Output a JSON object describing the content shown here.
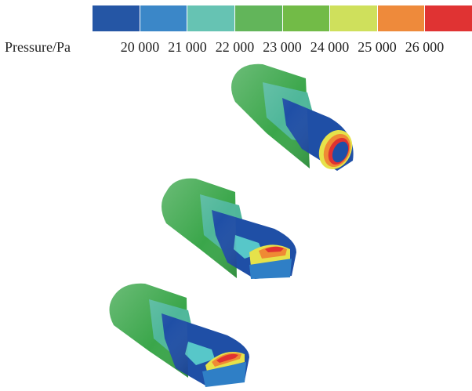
{
  "legend": {
    "title": "Pressure/Pa",
    "ticks": [
      "20 000",
      "21 000",
      "22 000",
      "23 000",
      "24 000",
      "25 000",
      "26 000"
    ],
    "colors": [
      "#2556a5",
      "#3b87c8",
      "#66c3b3",
      "#62b55a",
      "#72bb47",
      "#cfe05c",
      "#ee8a3b",
      "#e03333"
    ]
  },
  "palette": {
    "outer_green": "#3aa64a",
    "band_teal": "#4fb79a",
    "dark_blue": "#1f4fa6",
    "mid_blue": "#2f7fc6",
    "yellow": "#e6e24a",
    "orange": "#ef8a34",
    "red": "#e03232",
    "cyan": "#57c7c9"
  },
  "models": [
    {
      "name": "round-nose-body"
    },
    {
      "name": "rounded-rect-nose-body"
    },
    {
      "name": "flat-nose-body"
    }
  ]
}
